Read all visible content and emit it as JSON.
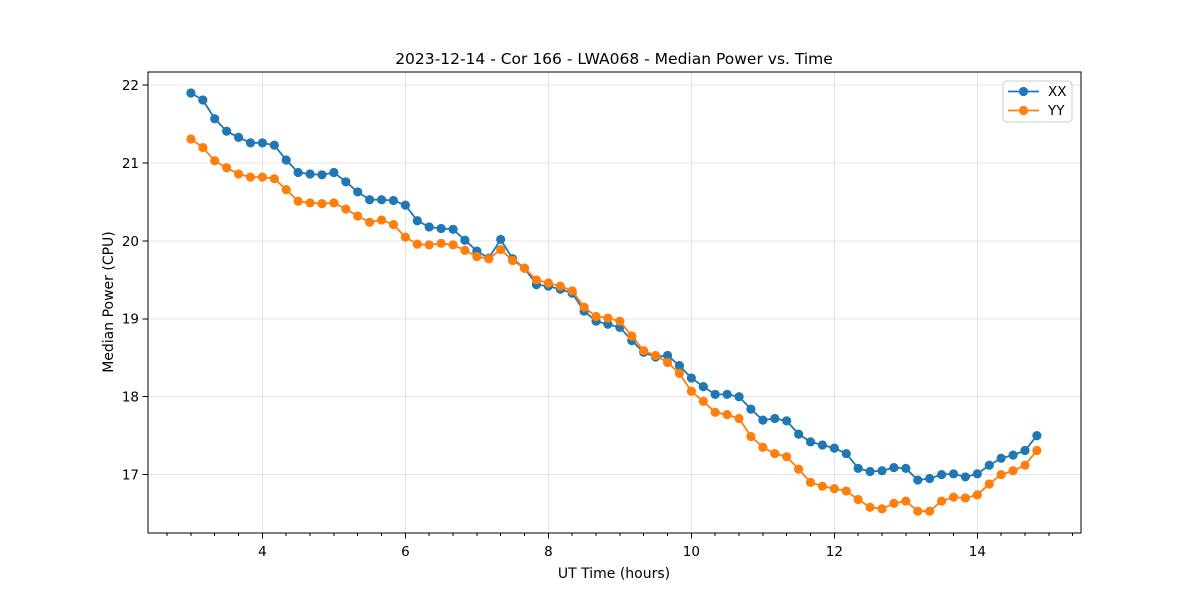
{
  "figure": {
    "background": "#ffffff",
    "spine_color": "#000000",
    "grid_color": "#e4e4e4",
    "legend_border_color": "#cccccc",
    "legend_background": "#ffffff"
  },
  "chart_data": {
    "type": "line",
    "title": "2023-12-14 - Cor 166 - LWA068 - Median Power vs. Time",
    "xlabel": "UT Time (hours)",
    "ylabel": "Median Power (CPU)",
    "xlim": [
      2.4,
      15.45
    ],
    "ylim": [
      16.25,
      22.17
    ],
    "xticks": [
      4,
      6,
      8,
      10,
      12,
      14
    ],
    "yticks": [
      17,
      18,
      19,
      20,
      21,
      22
    ],
    "x_minor_tick_step": 0.3333,
    "grid": true,
    "legend_position": "upper right",
    "marker": "circle",
    "x": [
      3.0,
      3.167,
      3.333,
      3.5,
      3.667,
      3.833,
      4.0,
      4.167,
      4.333,
      4.5,
      4.667,
      4.833,
      5.0,
      5.167,
      5.333,
      5.5,
      5.667,
      5.833,
      6.0,
      6.167,
      6.333,
      6.5,
      6.667,
      6.833,
      7.0,
      7.167,
      7.333,
      7.5,
      7.667,
      7.833,
      8.0,
      8.167,
      8.333,
      8.5,
      8.667,
      8.833,
      9.0,
      9.167,
      9.333,
      9.5,
      9.667,
      9.833,
      10.0,
      10.167,
      10.333,
      10.5,
      10.667,
      10.833,
      11.0,
      11.167,
      11.333,
      11.5,
      11.667,
      11.833,
      12.0,
      12.167,
      12.333,
      12.5,
      12.667,
      12.833,
      13.0,
      13.167,
      13.333,
      13.5,
      13.667,
      13.833,
      14.0,
      14.167,
      14.333,
      14.5,
      14.667,
      14.833
    ],
    "series": [
      {
        "name": "XX",
        "color": "#1f77b4",
        "values": [
          21.9,
          21.81,
          21.57,
          21.41,
          21.33,
          21.26,
          21.26,
          21.23,
          21.04,
          20.88,
          20.86,
          20.85,
          20.88,
          20.76,
          20.63,
          20.53,
          20.53,
          20.52,
          20.46,
          20.26,
          20.18,
          20.16,
          20.15,
          20.01,
          19.87,
          19.78,
          20.02,
          19.77,
          19.65,
          19.44,
          19.42,
          19.38,
          19.33,
          19.1,
          18.97,
          18.93,
          18.89,
          18.72,
          18.57,
          18.51,
          18.53,
          18.4,
          18.24,
          18.13,
          18.03,
          18.03,
          18.0,
          17.84,
          17.7,
          17.72,
          17.69,
          17.52,
          17.42,
          17.38,
          17.34,
          17.27,
          17.08,
          17.04,
          17.05,
          17.09,
          17.08,
          16.93,
          16.95,
          17.0,
          17.01,
          16.97,
          17.01,
          17.12,
          17.21,
          17.25,
          17.31,
          17.5
        ]
      },
      {
        "name": "YY",
        "color": "#ff7f0e",
        "values": [
          21.31,
          21.2,
          21.03,
          20.94,
          20.86,
          20.82,
          20.82,
          20.8,
          20.66,
          20.51,
          20.49,
          20.48,
          20.49,
          20.41,
          20.32,
          20.24,
          20.27,
          20.21,
          20.05,
          19.96,
          19.95,
          19.97,
          19.95,
          19.88,
          19.8,
          19.77,
          19.89,
          19.75,
          19.65,
          19.5,
          19.46,
          19.42,
          19.36,
          19.15,
          19.03,
          19.01,
          18.97,
          18.78,
          18.59,
          18.53,
          18.44,
          18.3,
          18.07,
          17.94,
          17.8,
          17.77,
          17.72,
          17.49,
          17.35,
          17.27,
          17.23,
          17.07,
          16.9,
          16.85,
          16.82,
          16.79,
          16.68,
          16.58,
          16.56,
          16.63,
          16.66,
          16.53,
          16.53,
          16.66,
          16.71,
          16.7,
          16.74,
          16.88,
          17.0,
          17.05,
          17.12,
          17.31
        ]
      }
    ]
  }
}
